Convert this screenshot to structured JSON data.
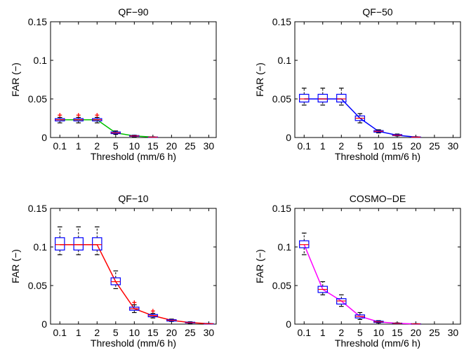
{
  "chart_data": [
    {
      "type": "boxplot",
      "title": "QF−90",
      "xlabel": "Threshold (mm/6 h)",
      "ylabel": "FAR (−)",
      "categories": [
        "0.1",
        "1",
        "2",
        "5",
        "10",
        "15",
        "20",
        "25",
        "30"
      ],
      "yticks": [
        "0",
        "0.05",
        "0.1",
        "0.15"
      ],
      "ylim": [
        0,
        0.15
      ],
      "line_color": "#00c000",
      "medians": [
        0.023,
        0.023,
        0.023,
        0.006,
        0.002,
        0.0005,
        null,
        null,
        null
      ],
      "boxes": [
        {
          "q1": 0.0215,
          "q3": 0.0245,
          "min": 0.019,
          "max": 0.026,
          "outliers": [
            0.029
          ]
        },
        {
          "q1": 0.0215,
          "q3": 0.0245,
          "min": 0.019,
          "max": 0.026,
          "outliers": [
            0.029
          ]
        },
        {
          "q1": 0.0215,
          "q3": 0.0245,
          "min": 0.019,
          "max": 0.026,
          "outliers": [
            0.029
          ]
        },
        {
          "q1": 0.005,
          "q3": 0.0072,
          "min": 0.004,
          "max": 0.0085,
          "outliers": []
        },
        {
          "q1": 0.0015,
          "q3": 0.0025,
          "min": 0.001,
          "max": 0.003,
          "outliers": []
        },
        {
          "q1": 0.0003,
          "q3": 0.0007,
          "min": 0.0002,
          "max": 0.0009,
          "outliers": []
        },
        null,
        null,
        null
      ]
    },
    {
      "type": "boxplot",
      "title": "QF−50",
      "xlabel": "Threshold (mm/6 h)",
      "ylabel": "FAR (−)",
      "categories": [
        "0.1",
        "1",
        "2",
        "5",
        "10",
        "15",
        "20",
        "25",
        "30"
      ],
      "yticks": [
        "0",
        "0.05",
        "0.1",
        "0.15"
      ],
      "ylim": [
        0,
        0.15
      ],
      "line_color": "#0000ff",
      "medians": [
        0.05,
        0.05,
        0.05,
        0.025,
        0.008,
        0.003,
        0.0005,
        null,
        null
      ],
      "boxes": [
        {
          "q1": 0.046,
          "q3": 0.056,
          "min": 0.042,
          "max": 0.064,
          "outliers": []
        },
        {
          "q1": 0.046,
          "q3": 0.056,
          "min": 0.042,
          "max": 0.064,
          "outliers": []
        },
        {
          "q1": 0.046,
          "q3": 0.056,
          "min": 0.042,
          "max": 0.064,
          "outliers": []
        },
        {
          "q1": 0.022,
          "q3": 0.028,
          "min": 0.019,
          "max": 0.031,
          "outliers": []
        },
        {
          "q1": 0.007,
          "q3": 0.009,
          "min": 0.006,
          "max": 0.01,
          "outliers": []
        },
        {
          "q1": 0.0025,
          "q3": 0.0038,
          "min": 0.002,
          "max": 0.0045,
          "outliers": []
        },
        {
          "q1": 0.0003,
          "q3": 0.0008,
          "min": 0.0002,
          "max": 0.001,
          "outliers": []
        },
        null,
        null
      ]
    },
    {
      "type": "boxplot",
      "title": "QF−10",
      "xlabel": "Threshold (mm/6 h)",
      "ylabel": "FAR (−)",
      "categories": [
        "0.1",
        "1",
        "2",
        "5",
        "10",
        "15",
        "20",
        "25",
        "30"
      ],
      "yticks": [
        "0",
        "0.05",
        "0.1",
        "0.15"
      ],
      "ylim": [
        0,
        0.15
      ],
      "line_color": "#ff0000",
      "medians": [
        0.103,
        0.103,
        0.103,
        0.055,
        0.02,
        0.011,
        0.005,
        0.002,
        0.0005
      ],
      "boxes": [
        {
          "q1": 0.096,
          "q3": 0.112,
          "min": 0.09,
          "max": 0.126,
          "outliers": []
        },
        {
          "q1": 0.096,
          "q3": 0.112,
          "min": 0.09,
          "max": 0.126,
          "outliers": []
        },
        {
          "q1": 0.096,
          "q3": 0.112,
          "min": 0.09,
          "max": 0.126,
          "outliers": []
        },
        {
          "q1": 0.051,
          "q3": 0.06,
          "min": 0.046,
          "max": 0.069,
          "outliers": []
        },
        {
          "q1": 0.018,
          "q3": 0.022,
          "min": 0.015,
          "max": 0.025,
          "outliers": [
            0.028
          ]
        },
        {
          "q1": 0.0095,
          "q3": 0.0125,
          "min": 0.008,
          "max": 0.014,
          "outliers": [
            0.017
          ]
        },
        {
          "q1": 0.004,
          "q3": 0.0058,
          "min": 0.0035,
          "max": 0.0065,
          "outliers": []
        },
        {
          "q1": 0.0015,
          "q3": 0.0025,
          "min": 0.001,
          "max": 0.003,
          "outliers": []
        },
        {
          "q1": 0.0003,
          "q3": 0.0007,
          "min": 0.0002,
          "max": 0.0009,
          "outliers": []
        }
      ]
    },
    {
      "type": "boxplot",
      "title": "COSMO−DE",
      "xlabel": "Threshold (mm/6 h)",
      "ylabel": "FAR (−)",
      "categories": [
        "0.1",
        "1",
        "2",
        "5",
        "10",
        "15",
        "20",
        "25",
        "30"
      ],
      "yticks": [
        "0",
        "0.05",
        "0.1",
        "0.15"
      ],
      "ylim": [
        0,
        0.15
      ],
      "line_color": "#ff00ff",
      "medians": [
        0.103,
        0.045,
        0.03,
        0.01,
        0.003,
        0.001,
        0.0003,
        null,
        null
      ],
      "boxes": [
        {
          "q1": 0.099,
          "q3": 0.108,
          "min": 0.09,
          "max": 0.118,
          "outliers": []
        },
        {
          "q1": 0.041,
          "q3": 0.049,
          "min": 0.038,
          "max": 0.055,
          "outliers": []
        },
        {
          "q1": 0.026,
          "q3": 0.033,
          "min": 0.023,
          "max": 0.038,
          "outliers": []
        },
        {
          "q1": 0.008,
          "q3": 0.012,
          "min": 0.006,
          "max": 0.015,
          "outliers": []
        },
        {
          "q1": 0.0022,
          "q3": 0.0038,
          "min": 0.0015,
          "max": 0.0045,
          "outliers": []
        },
        {
          "q1": 0.0007,
          "q3": 0.0013,
          "min": 0.0005,
          "max": 0.0016,
          "outliers": []
        },
        {
          "q1": 0.0002,
          "q3": 0.0005,
          "min": 0.0001,
          "max": 0.0006,
          "outliers": []
        },
        null,
        null
      ]
    }
  ]
}
